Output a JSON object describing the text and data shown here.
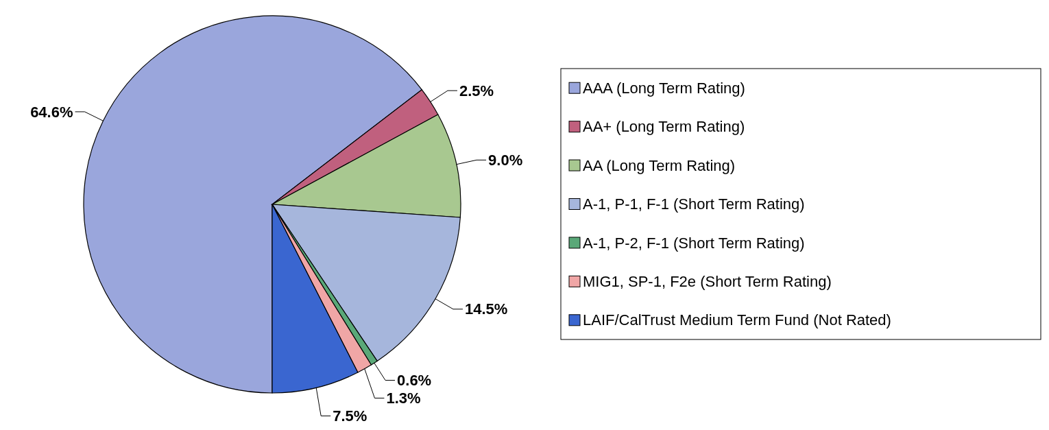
{
  "chart_data": {
    "type": "pie",
    "categories": [
      "AAA  (Long Term Rating)",
      "AA+ (Long Term Rating)",
      "AA (Long Term Rating)",
      "A-1, P-1, F-1 (Short Term Rating)",
      "A-1, P-2, F-1 (Short Term Rating)",
      "MIG1, SP-1, F2e (Short Term Rating)",
      "LAIF/CalTrust Medium Term Fund (Not Rated)"
    ],
    "values": [
      64.6,
      2.5,
      9.0,
      14.5,
      0.6,
      1.3,
      7.5
    ],
    "value_labels": [
      "64.6%",
      "2.5%",
      "9.0%",
      "14.5%",
      "0.6%",
      "1.3%",
      "7.5%"
    ],
    "colors": [
      "#9aa6dc",
      "#c0607e",
      "#a8c890",
      "#a6b6dc",
      "#5aa878",
      "#f0a6a6",
      "#3a66d0"
    ],
    "legend": "right"
  }
}
